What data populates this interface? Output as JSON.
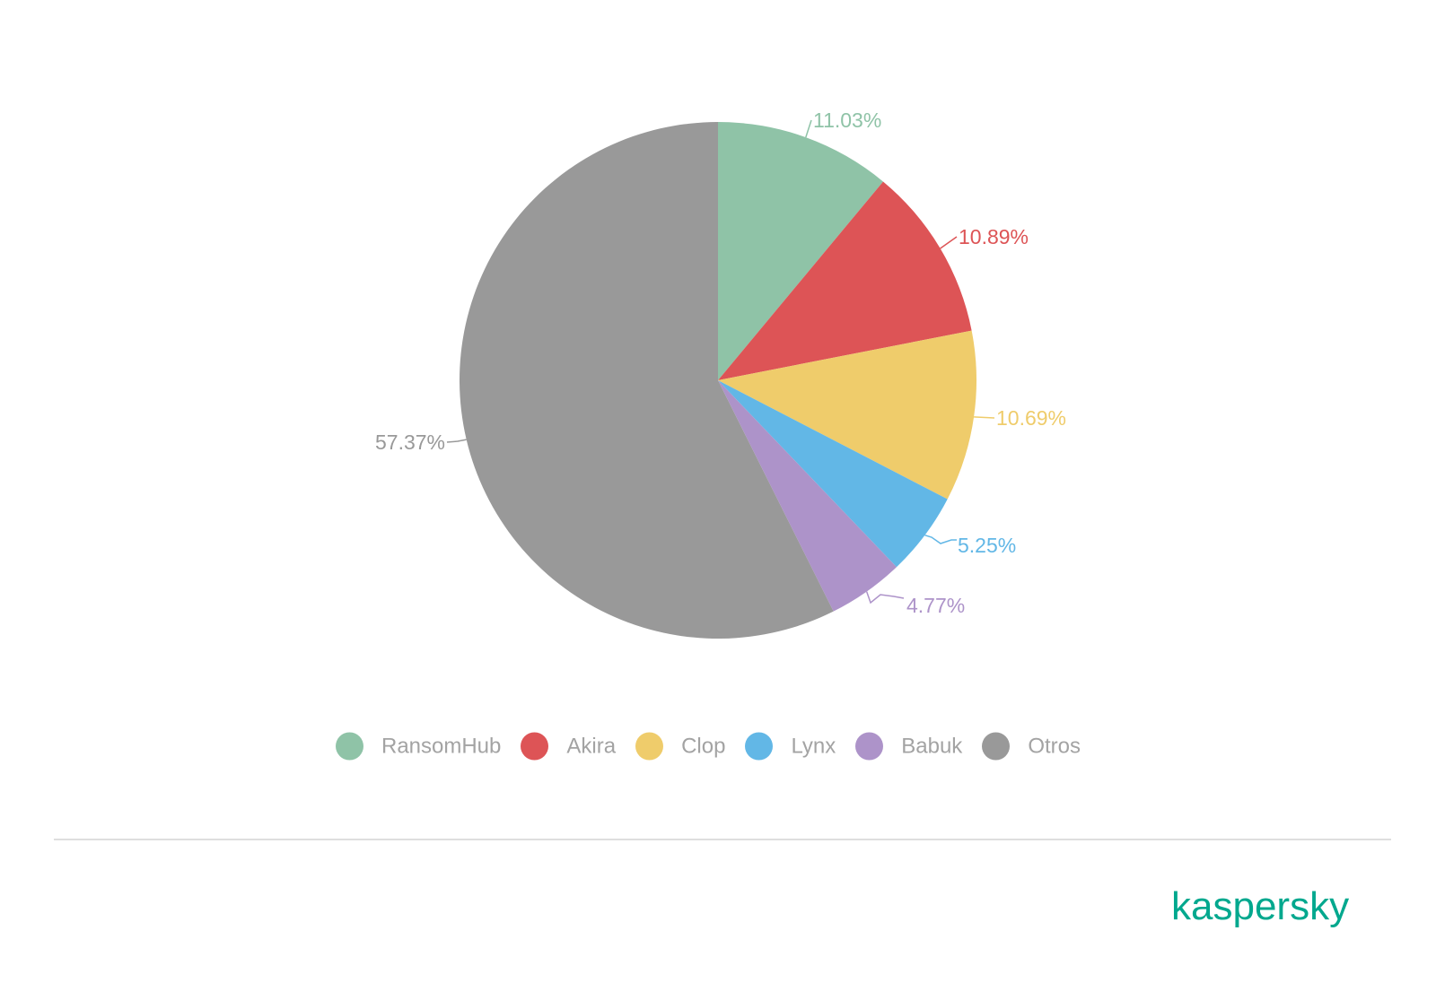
{
  "chart_data": {
    "type": "pie",
    "title": "",
    "slices": [
      {
        "name": "RansomHub",
        "value": 11.03,
        "label": "11.03%",
        "color": "#8fc3a7"
      },
      {
        "name": "Akira",
        "value": 10.89,
        "label": "10.89%",
        "color": "#dd5456"
      },
      {
        "name": "Clop",
        "value": 10.69,
        "label": "10.69%",
        "color": "#efcc6b"
      },
      {
        "name": "Lynx",
        "value": 5.25,
        "label": "5.25%",
        "color": "#62b7e6"
      },
      {
        "name": "Babuk",
        "value": 4.77,
        "label": "4.77%",
        "color": "#ad93c9"
      },
      {
        "name": "Otros",
        "value": 57.37,
        "label": "57.37%",
        "color": "#999999"
      }
    ],
    "legend_position": "bottom"
  },
  "legend": {
    "items": [
      {
        "label": "RansomHub",
        "color": "#8fc3a7"
      },
      {
        "label": "Akira",
        "color": "#dd5456"
      },
      {
        "label": "Clop",
        "color": "#efcc6b"
      },
      {
        "label": "Lynx",
        "color": "#62b7e6"
      },
      {
        "label": "Babuk",
        "color": "#ad93c9"
      },
      {
        "label": "Otros",
        "color": "#999999"
      }
    ]
  },
  "brand": {
    "logo_text": "kaspersky",
    "color": "#00a88e"
  }
}
